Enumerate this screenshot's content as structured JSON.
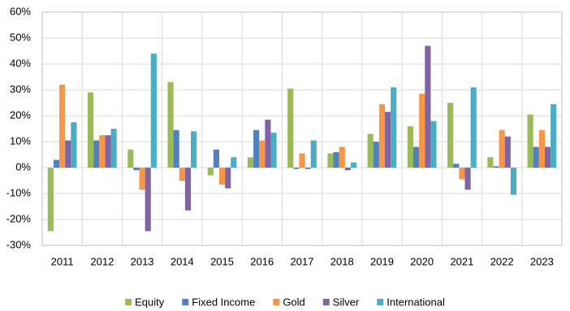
{
  "chart_data": {
    "type": "bar",
    "categories": [
      "2011",
      "2012",
      "2013",
      "2014",
      "2015",
      "2016",
      "2017",
      "2018",
      "2019",
      "2020",
      "2021",
      "2022",
      "2023"
    ],
    "series": [
      {
        "name": "Equity",
        "color": "#9bbb59",
        "values": [
          -24.5,
          29,
          7,
          33,
          -3,
          4,
          30.5,
          5.5,
          13,
          16,
          25,
          4,
          20.5
        ]
      },
      {
        "name": "Fixed Income",
        "color": "#4f81bd",
        "values": [
          3,
          10.5,
          -1,
          14.5,
          7,
          14.5,
          -0.5,
          6,
          10,
          8,
          1.5,
          0.5,
          8
        ]
      },
      {
        "name": "Gold",
        "color": "#f79646",
        "values": [
          32,
          12.5,
          -8.5,
          -5,
          -6.5,
          10.5,
          5.5,
          8,
          24.5,
          28.5,
          -4.5,
          14.5,
          14.5
        ]
      },
      {
        "name": "Silver",
        "color": "#8064a2",
        "values": [
          10.5,
          12.5,
          -24.5,
          -16.5,
          -8,
          18.5,
          -0.5,
          -1,
          21.5,
          47,
          -8.5,
          12,
          8
        ]
      },
      {
        "name": "International",
        "color": "#4bacc6",
        "values": [
          17.5,
          15,
          44,
          14,
          4,
          13.5,
          10.5,
          2,
          31,
          18,
          31,
          -10.5,
          24.5
        ]
      }
    ],
    "ylim": [
      -30,
      60
    ],
    "yticks": [
      {
        "value": -30,
        "label": "-30%"
      },
      {
        "value": -20,
        "label": "-20%"
      },
      {
        "value": -10,
        "label": "-10%"
      },
      {
        "value": 0,
        "label": "0%"
      },
      {
        "value": 10,
        "label": "10%"
      },
      {
        "value": 20,
        "label": "20%"
      },
      {
        "value": 30,
        "label": "30%"
      },
      {
        "value": 40,
        "label": "40%"
      },
      {
        "value": 50,
        "label": "50%"
      },
      {
        "value": 60,
        "label": "60%"
      }
    ],
    "grid": true,
    "legend": "bottom"
  }
}
